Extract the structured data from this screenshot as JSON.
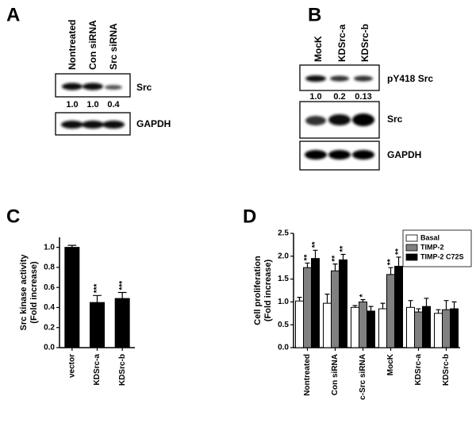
{
  "panel_a": {
    "letter": "A",
    "lanes": [
      "Nontreated",
      "Con siRNA",
      "Src siRNA"
    ],
    "blots": [
      {
        "label": "Src",
        "quant": [
          "1.0",
          "1.0",
          "0.4"
        ]
      },
      {
        "label": "GAPDH"
      }
    ]
  },
  "panel_b": {
    "letter": "B",
    "lanes": [
      "MocK",
      "KDSrc-a",
      "KDSrc-b"
    ],
    "blots": [
      {
        "label": "pY418 Src",
        "quant": [
          "1.0",
          "0.2",
          "0.13"
        ]
      },
      {
        "label": "Src"
      },
      {
        "label": "GAPDH"
      }
    ]
  },
  "chart_data": [
    {
      "type": "bar",
      "panel": "C",
      "y_label": [
        "Src kinase activity",
        "(Fold increase)"
      ],
      "categories": [
        "vector",
        "KDSrc-a",
        "KDSrc-b"
      ],
      "values": [
        1.0,
        0.45,
        0.49
      ],
      "errors": [
        0.02,
        0.07,
        0.06
      ],
      "annotations": [
        null,
        "***",
        "***"
      ],
      "color": "#000000",
      "ylim": [
        0,
        1.1
      ],
      "yticks": [
        {
          "value": 0,
          "label": "0.0"
        },
        {
          "value": 0.2,
          "label": "0.2"
        },
        {
          "value": 0.4,
          "label": "0.4"
        },
        {
          "value": 0.6,
          "label": "0.6"
        },
        {
          "value": 0.8,
          "label": "0.8"
        },
        {
          "value": 1.0,
          "label": "1.0"
        }
      ]
    },
    {
      "type": "bar",
      "panel": "D",
      "y_label": [
        "Cell proliferation",
        "(Fold increase)"
      ],
      "categories": [
        "Nontreated",
        "Con siRNA",
        "c-Src siRNA",
        "MocK",
        "KDSrc-a",
        "KDSrc-b"
      ],
      "series": [
        {
          "name": "Basal",
          "color": "#ffffff",
          "values": [
            1.02,
            0.97,
            0.88,
            0.85,
            0.88,
            0.75
          ],
          "errors": [
            0.08,
            0.2,
            0.04,
            0.12,
            0.15,
            0.08
          ],
          "annotations": [
            null,
            null,
            null,
            null,
            null,
            null
          ]
        },
        {
          "name": "TIMP-2",
          "color": "#808080",
          "values": [
            1.75,
            1.68,
            1.0,
            1.6,
            0.78,
            0.83
          ],
          "errors": [
            0.1,
            0.15,
            0.05,
            0.15,
            0.07,
            0.2
          ],
          "annotations": [
            "**",
            "**",
            "*",
            "**",
            null,
            null
          ]
        },
        {
          "name": "TIMP-2 C72S",
          "color": "#000000",
          "values": [
            1.95,
            1.92,
            0.8,
            1.78,
            0.9,
            0.85
          ],
          "errors": [
            0.18,
            0.12,
            0.1,
            0.2,
            0.18,
            0.15
          ],
          "annotations": [
            "**",
            "**",
            null,
            "**",
            null,
            null
          ]
        }
      ],
      "ylim": [
        0,
        2.5
      ],
      "yticks": [
        {
          "value": 0,
          "label": "0.0"
        },
        {
          "value": 0.5,
          "label": "0.5"
        },
        {
          "value": 1.0,
          "label": "1.0"
        },
        {
          "value": 1.5,
          "label": "1.5"
        },
        {
          "value": 2.0,
          "label": "2.0"
        },
        {
          "value": 2.5,
          "label": "2.5"
        }
      ],
      "legend": "upper right"
    }
  ]
}
